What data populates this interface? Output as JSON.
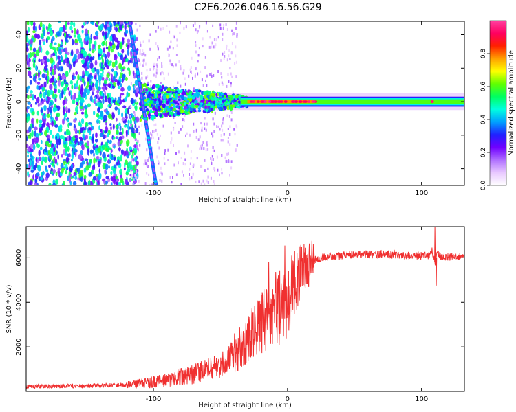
{
  "title": "C2E6.2026.046.16.56.G29",
  "chart_data": [
    {
      "type": "heatmap",
      "title": "C2E6.2026.046.16.56.G29",
      "xlabel": "Height of straight line (km)",
      "ylabel": "Frequency (Hz)",
      "xlim": [
        -195,
        132
      ],
      "ylim": [
        -50,
        48
      ],
      "xticks": [
        -100,
        0,
        100
      ],
      "yticks": [
        -40,
        -20,
        0,
        20,
        40
      ],
      "colorbar": {
        "label": "Normalized spectral amplitude",
        "range": [
          0,
          1
        ],
        "ticks": [
          0.0,
          0.2,
          0.4,
          0.6,
          0.8
        ],
        "tick_labels": [
          "0.0",
          "0.2",
          "0.4",
          "0.6",
          "0.8"
        ],
        "colors": [
          "#ffffff",
          "#e8c8ff",
          "#b070ff",
          "#7000ff",
          "#2020ff",
          "#00a0ff",
          "#00ffe0",
          "#00ff60",
          "#60ff00",
          "#ffff00",
          "#ffa000",
          "#ff2000",
          "#ff0060",
          "#ff40a0"
        ]
      },
      "features": {
        "diagonal_track": {
          "x_at_top": -118,
          "x_at_bottom": -98,
          "freq_top": 48,
          "freq_bottom": -50
        },
        "central_band": {
          "x_start": -110,
          "x_end": 132,
          "freq_center": 0,
          "half_width_hz": 3
        },
        "noise_region_x_end": -120
      }
    },
    {
      "type": "line",
      "xlabel": "Height of straight line (km)",
      "ylabel": "SNR (10 * v/v)",
      "xlim": [
        -195,
        132
      ],
      "ylim": [
        0,
        7400
      ],
      "xticks": [
        -100,
        0,
        100
      ],
      "yticks": [
        2000,
        4000,
        6000
      ],
      "series": [
        {
          "name": "SNR",
          "color": "#f03030",
          "x": [
            -195,
            -180,
            -160,
            -140,
            -120,
            -100,
            -90,
            -80,
            -70,
            -60,
            -50,
            -45,
            -40,
            -35,
            -30,
            -25,
            -20,
            -15,
            -10,
            -5,
            0,
            5,
            10,
            15,
            20,
            25,
            30,
            40,
            50,
            60,
            70,
            80,
            90,
            100,
            105,
            108,
            110,
            112,
            115,
            120,
            125,
            132
          ],
          "values": [
            220,
            230,
            240,
            260,
            300,
            420,
            520,
            650,
            780,
            950,
            1150,
            1400,
            1700,
            1950,
            2300,
            2700,
            3050,
            3400,
            3650,
            3850,
            4200,
            4800,
            5300,
            5700,
            5900,
            6000,
            6050,
            6100,
            6150,
            6150,
            6150,
            6150,
            6100,
            6100,
            6100,
            6300,
            5800,
            6200,
            6050,
            6050,
            6050,
            6000
          ]
        }
      ],
      "annotations": [
        {
          "x": -2,
          "value": 6550
        },
        {
          "x": -14,
          "value": 5800
        },
        {
          "x": 110,
          "value": 7400
        },
        {
          "x": 111,
          "value": 4750
        }
      ]
    }
  ]
}
